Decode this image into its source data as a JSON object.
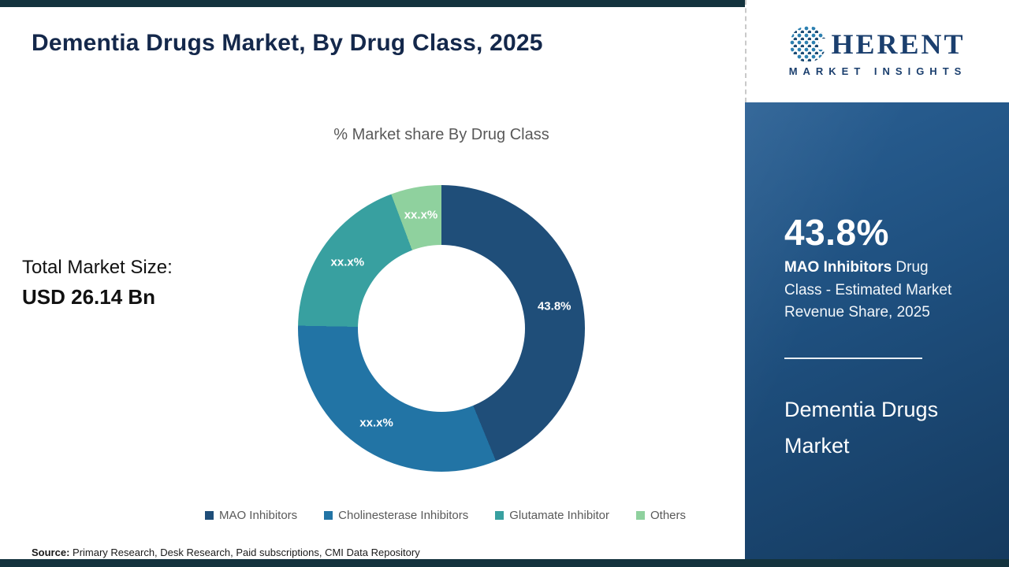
{
  "header": {
    "title": "Dementia Drugs Market, By Drug Class, 2025"
  },
  "logo": {
    "brand_initial": "C",
    "brand_rest": "HERENT",
    "tagline": "MARKET INSIGHTS"
  },
  "chart_data": {
    "type": "pie",
    "variant": "donut",
    "title": "% Market share By Drug Class",
    "total_label": "Total Market Size:",
    "total_value": "USD 26.14 Bn",
    "legend_position": "bottom",
    "slices": [
      {
        "label": "MAO Inhibitors",
        "value": 43.8,
        "display_value": "43.8%",
        "color": "#1f4e79"
      },
      {
        "label": "Cholinesterase Inhibitors",
        "value": 31.5,
        "display_value": "xx.x%",
        "color": "#2274a5"
      },
      {
        "label": "Glutamate Inhibitor",
        "value": 19.0,
        "display_value": "xx.x%",
        "color": "#38a0a0"
      },
      {
        "label": "Others",
        "value": 5.7,
        "display_value": "xx.x%",
        "color": "#8fd19e"
      }
    ]
  },
  "sidebar": {
    "stat_value": "43.8%",
    "stat_highlight": "MAO Inhibitors",
    "stat_rest": " Drug Class - Estimated Market Revenue Share, 2025",
    "product_name": "Dementia Drugs Market"
  },
  "footer": {
    "source_label": "Source:",
    "source_text": " Primary Research, Desk Research, Paid subscriptions, CMI Data Repository"
  }
}
